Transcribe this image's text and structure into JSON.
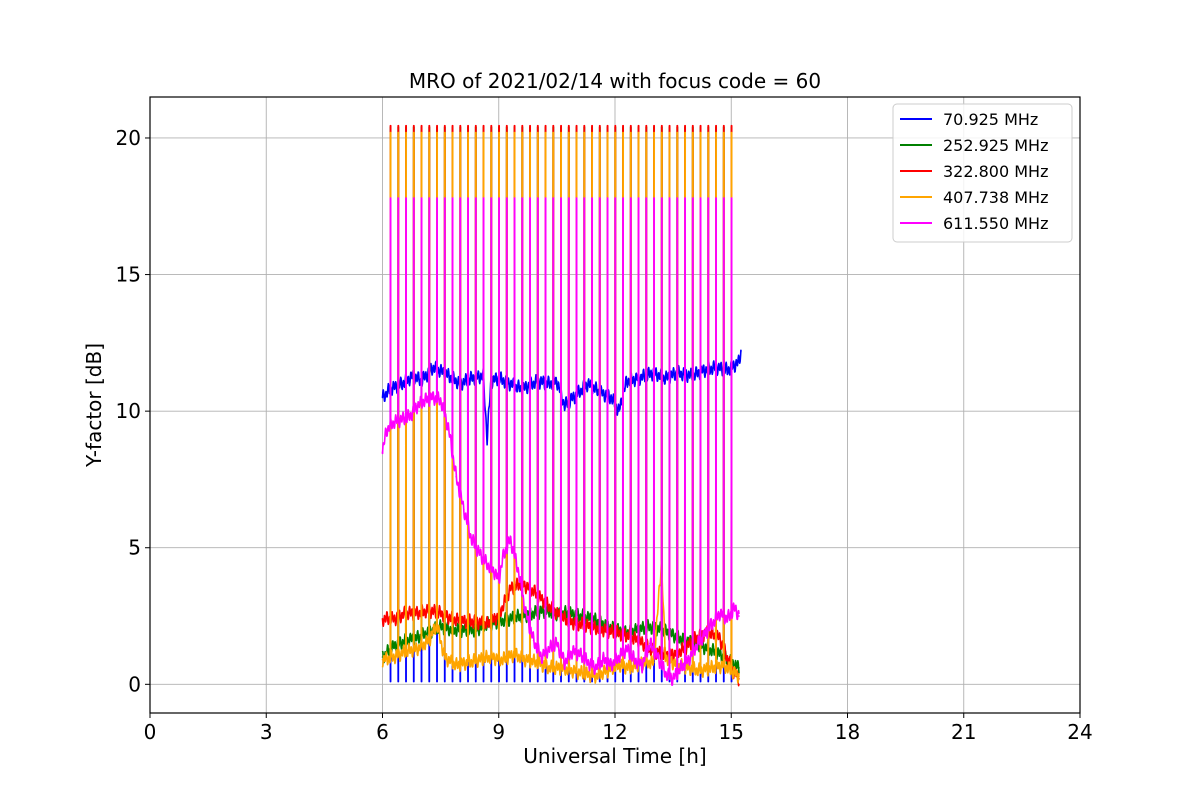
{
  "chart_data": {
    "type": "line",
    "title": "MRO of 2021/02/14 with focus code = 60",
    "xlabel": "Universal Time [h]",
    "ylabel": "Y-factor [dB]",
    "xlim": [
      0,
      24
    ],
    "ylim": [
      -1.05,
      21.5
    ],
    "xticks": [
      0,
      3,
      6,
      9,
      12,
      15,
      18,
      21,
      24
    ],
    "yticks": [
      0,
      5,
      10,
      15,
      20
    ],
    "grid": true,
    "legend_position": "top-right",
    "calibration_pulses": {
      "period_h": 0.2,
      "first_pulse_h": 6.2,
      "last_pulse_h": 15.05,
      "peak_values_db": {
        "252.925 MHz": 20.4,
        "322.800 MHz": 20.45,
        "407.738 MHz": 20.2,
        "611.550 MHz": 17.8
      },
      "dip_value_db": {
        "70.925 MHz": 0.1
      }
    },
    "series": [
      {
        "name": " 70.925 MHz",
        "color": "#0000ff",
        "x": [
          6.0,
          6.2,
          6.5,
          6.8,
          7.0,
          7.3,
          7.6,
          8.0,
          8.3,
          8.6,
          8.7,
          8.8,
          9.0,
          9.3,
          9.6,
          10.0,
          10.3,
          10.5,
          10.7,
          11.0,
          11.3,
          11.6,
          11.9,
          12.1,
          12.3,
          12.6,
          13.0,
          13.3,
          13.6,
          14.0,
          14.3,
          14.6,
          14.9,
          15.2,
          15.25
        ],
        "values": [
          10.5,
          10.8,
          11.0,
          11.3,
          11.1,
          11.6,
          11.4,
          11.0,
          11.2,
          11.3,
          9.0,
          11.1,
          11.2,
          11.0,
          10.8,
          11.1,
          11.0,
          11.1,
          10.2,
          10.6,
          11.0,
          10.7,
          10.5,
          10.0,
          11.1,
          11.2,
          11.4,
          11.2,
          11.4,
          11.3,
          11.5,
          11.6,
          11.5,
          11.8,
          12.2
        ]
      },
      {
        "name": " 252.925 MHz",
        "color": "#008000",
        "x": [
          6.0,
          6.3,
          6.6,
          6.9,
          7.2,
          7.5,
          7.8,
          8.1,
          8.4,
          8.7,
          9.0,
          9.3,
          9.6,
          9.9,
          10.2,
          10.5,
          10.8,
          11.1,
          11.4,
          11.7,
          12.0,
          12.3,
          12.6,
          12.9,
          13.2,
          13.5,
          13.8,
          14.1,
          14.4,
          14.7,
          15.0,
          15.2
        ],
        "values": [
          1.0,
          1.4,
          1.6,
          1.7,
          1.9,
          2.1,
          2.0,
          2.0,
          2.0,
          2.2,
          2.3,
          2.4,
          2.5,
          2.6,
          2.7,
          2.6,
          2.6,
          2.5,
          2.4,
          2.2,
          2.0,
          1.9,
          2.0,
          2.1,
          2.0,
          1.8,
          1.6,
          1.5,
          1.3,
          1.1,
          0.8,
          0.6
        ]
      },
      {
        "name": " 322.800 MHz",
        "color": "#ff0000",
        "x": [
          6.0,
          6.3,
          6.6,
          6.9,
          7.2,
          7.5,
          7.8,
          8.1,
          8.4,
          8.7,
          9.0,
          9.3,
          9.6,
          9.9,
          10.2,
          10.5,
          10.8,
          11.1,
          11.4,
          11.7,
          12.0,
          12.3,
          12.6,
          12.9,
          13.2,
          13.5,
          13.8,
          14.1,
          14.4,
          14.7,
          15.0,
          15.2
        ],
        "values": [
          2.4,
          2.4,
          2.6,
          2.6,
          2.7,
          2.6,
          2.4,
          2.3,
          2.3,
          2.2,
          2.5,
          3.5,
          3.7,
          3.4,
          3.0,
          2.6,
          2.3,
          2.2,
          2.1,
          2.0,
          1.9,
          1.8,
          1.6,
          1.3,
          1.1,
          1.1,
          1.3,
          1.7,
          1.9,
          1.7,
          0.6,
          0.2
        ]
      },
      {
        "name": " 407.738 MHz",
        "color": "#ffa500",
        "x": [
          6.0,
          6.3,
          6.6,
          6.9,
          7.2,
          7.4,
          7.6,
          7.9,
          8.2,
          8.5,
          8.8,
          9.1,
          9.4,
          9.7,
          10.0,
          10.3,
          10.6,
          10.9,
          11.2,
          11.5,
          11.8,
          12.1,
          12.4,
          12.7,
          13.0,
          13.2,
          13.3,
          13.6,
          13.9,
          14.2,
          14.5,
          14.8,
          15.1,
          15.2
        ],
        "values": [
          0.9,
          1.0,
          1.2,
          1.3,
          1.6,
          2.2,
          1.0,
          0.7,
          0.8,
          0.9,
          1.0,
          0.9,
          1.1,
          0.9,
          0.8,
          0.6,
          0.6,
          0.5,
          0.4,
          0.3,
          0.5,
          0.7,
          0.6,
          0.8,
          0.8,
          4.5,
          1.0,
          0.7,
          0.6,
          0.5,
          0.6,
          0.7,
          0.4,
          0.3
        ]
      },
      {
        "name": " 611.550 MHz",
        "color": "#ff00ff",
        "x": [
          6.0,
          6.1,
          6.3,
          6.5,
          6.7,
          6.9,
          7.1,
          7.3,
          7.5,
          7.7,
          7.9,
          8.1,
          8.3,
          8.5,
          8.7,
          8.9,
          9.0,
          9.1,
          9.2,
          9.3,
          9.5,
          9.7,
          9.9,
          10.1,
          10.3,
          10.5,
          10.7,
          10.9,
          11.1,
          11.3,
          11.5,
          11.7,
          11.9,
          12.1,
          12.3,
          12.5,
          12.7,
          12.9,
          13.1,
          13.3,
          13.5,
          13.7,
          13.9,
          14.1,
          14.3,
          14.5,
          14.7,
          14.9,
          15.1,
          15.2
        ],
        "values": [
          8.5,
          9.3,
          9.6,
          9.7,
          9.8,
          10.2,
          10.4,
          10.5,
          10.4,
          9.4,
          7.6,
          6.4,
          5.3,
          4.8,
          4.4,
          4.1,
          3.8,
          4.6,
          5.0,
          5.3,
          4.2,
          2.6,
          1.6,
          1.0,
          1.3,
          1.5,
          0.8,
          1.2,
          1.1,
          0.8,
          0.6,
          0.9,
          0.7,
          1.0,
          1.3,
          0.9,
          0.7,
          1.5,
          1.0,
          0.4,
          0.2,
          0.6,
          0.9,
          1.4,
          1.8,
          2.2,
          2.6,
          2.4,
          2.8,
          2.5
        ]
      }
    ]
  }
}
